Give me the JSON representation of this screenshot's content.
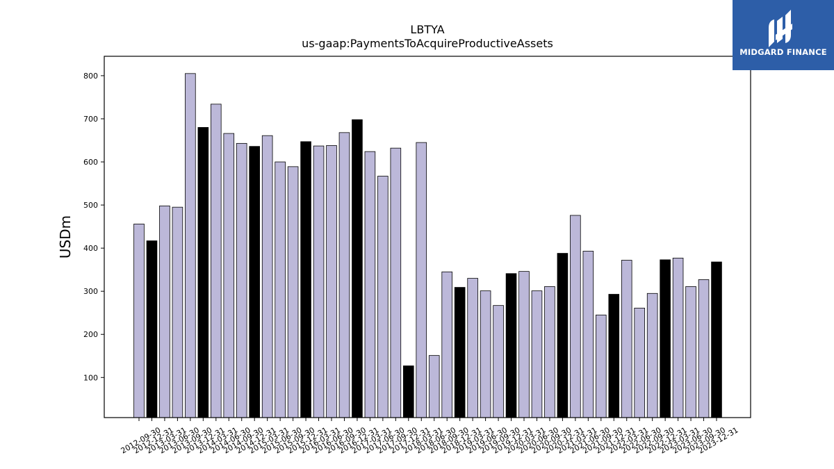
{
  "logo": {
    "name": "MIDGARD FINANCE",
    "icon": "midgard-logo-icon",
    "background_color": "#2d5ea8"
  },
  "chart_data": {
    "type": "bar",
    "title": "LBTYA",
    "subtitle": "us-gaap:PaymentsToAcquireProductiveAssets",
    "xlabel": "",
    "ylabel": "USDm",
    "ylim": [
      7,
      845
    ],
    "yticks": [
      100,
      200,
      300,
      400,
      500,
      600,
      700,
      800
    ],
    "grid": false,
    "bar_colors": {
      "quarter": "#bcb8d9",
      "year_end": "#000000",
      "edge": "#000000"
    },
    "categories": [
      "2012-09-30",
      "2012-12-31",
      "2013-03-31",
      "2013-06-30",
      "2013-09-30",
      "2013-12-31",
      "2014-03-31",
      "2014-06-30",
      "2014-09-30",
      "2014-12-31",
      "2015-03-31",
      "2015-06-30",
      "2015-09-30",
      "2015-12-31",
      "2016-03-31",
      "2016-06-30",
      "2016-09-30",
      "2016-12-31",
      "2017-03-31",
      "2017-06-30",
      "2017-09-30",
      "2017-12-31",
      "2018-03-31",
      "2018-06-30",
      "2018-09-30",
      "2018-12-31",
      "2019-03-31",
      "2019-06-30",
      "2019-09-30",
      "2019-12-31",
      "2020-03-31",
      "2020-06-30",
      "2020-09-30",
      "2020-12-31",
      "2021-03-31",
      "2021-06-30",
      "2021-09-30",
      "2021-12-31",
      "2022-03-31",
      "2022-06-30",
      "2022-09-30",
      "2022-12-31",
      "2023-03-31",
      "2023-06-30",
      "2023-09-30",
      "2023-12-31"
    ],
    "values": [
      456,
      417,
      498,
      495,
      805,
      680,
      734,
      666,
      643,
      636,
      661,
      600,
      589,
      647,
      637,
      638,
      668,
      698,
      624,
      567,
      632,
      127,
      645,
      151,
      345,
      309,
      330,
      301,
      267,
      341,
      346,
      301,
      311,
      388,
      476,
      393,
      245,
      293,
      372,
      261,
      295,
      373,
      377,
      311,
      327,
      368
    ],
    "year_end": [
      false,
      true,
      false,
      false,
      false,
      true,
      false,
      false,
      false,
      true,
      false,
      false,
      false,
      true,
      false,
      false,
      false,
      true,
      false,
      false,
      false,
      true,
      false,
      false,
      false,
      true,
      false,
      false,
      false,
      true,
      false,
      false,
      false,
      true,
      false,
      false,
      false,
      true,
      false,
      false,
      false,
      true,
      false,
      false,
      false,
      true
    ]
  }
}
